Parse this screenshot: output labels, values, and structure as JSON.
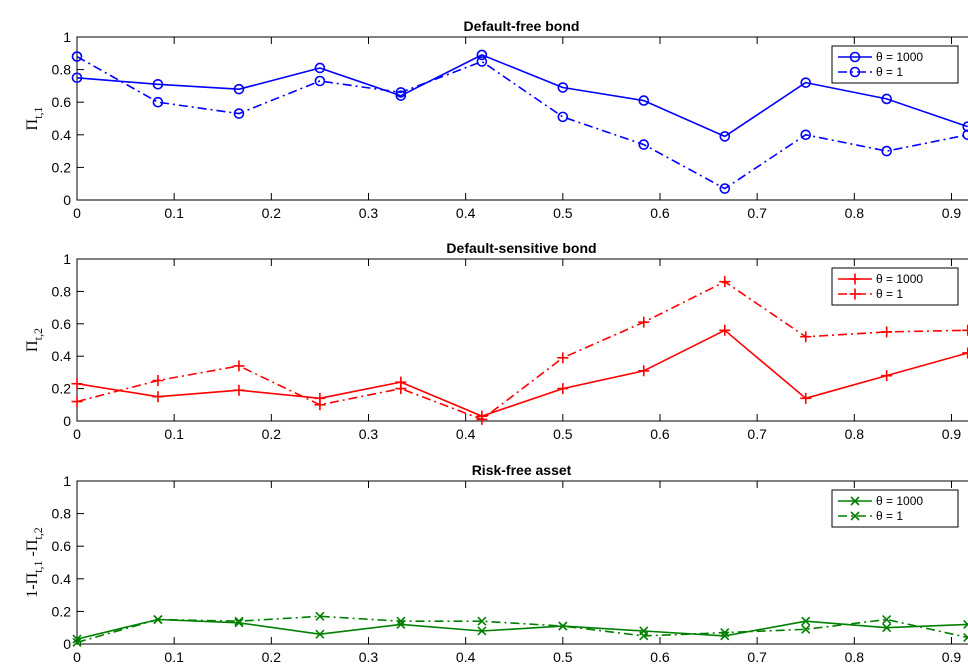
{
  "chart_data": [
    {
      "type": "line",
      "title": "Default-free bond",
      "ylabel": "Π",
      "ylabel_sub": "t,1",
      "xlim": [
        0,
        0.917
      ],
      "ylim": [
        0,
        1
      ],
      "xticks": [
        "0",
        "0.1",
        "0.2",
        "0.3",
        "0.4",
        "0.5",
        "0.6",
        "0.7",
        "0.8",
        "0.9"
      ],
      "yticks": [
        "0",
        "0.2",
        "0.4",
        "0.6",
        "0.8",
        "1"
      ],
      "color": "#0000ff",
      "marker": "o",
      "legend_position": "top-right",
      "x": [
        0,
        0.0833,
        0.1667,
        0.25,
        0.3333,
        0.4167,
        0.5,
        0.5833,
        0.6667,
        0.75,
        0.8333,
        0.9167
      ],
      "series": [
        {
          "name": "θ = 1000",
          "style": "solid",
          "values": [
            0.75,
            0.71,
            0.68,
            0.81,
            0.64,
            0.89,
            0.69,
            0.61,
            0.39,
            0.72,
            0.62,
            0.45
          ]
        },
        {
          "name": "θ = 1",
          "style": "dashdot",
          "values": [
            0.88,
            0.6,
            0.53,
            0.73,
            0.66,
            0.85,
            0.51,
            0.34,
            0.07,
            0.4,
            0.3,
            0.4
          ]
        }
      ]
    },
    {
      "type": "line",
      "title": "Default-sensitive bond",
      "ylabel": "Π",
      "ylabel_sub": "t,2",
      "xlim": [
        0,
        0.917
      ],
      "ylim": [
        0,
        1
      ],
      "xticks": [
        "0",
        "0.1",
        "0.2",
        "0.3",
        "0.4",
        "0.5",
        "0.6",
        "0.7",
        "0.8",
        "0.9"
      ],
      "yticks": [
        "0",
        "0.2",
        "0.4",
        "0.6",
        "0.8",
        "1"
      ],
      "color": "#ff0000",
      "marker": "+",
      "legend_position": "top-right",
      "x": [
        0,
        0.0833,
        0.1667,
        0.25,
        0.3333,
        0.4167,
        0.5,
        0.5833,
        0.6667,
        0.75,
        0.8333,
        0.9167
      ],
      "series": [
        {
          "name": "θ = 1000",
          "style": "solid",
          "values": [
            0.23,
            0.15,
            0.19,
            0.14,
            0.24,
            0.03,
            0.2,
            0.31,
            0.56,
            0.14,
            0.28,
            0.42
          ]
        },
        {
          "name": "θ = 1",
          "style": "dashdot",
          "values": [
            0.12,
            0.25,
            0.34,
            0.1,
            0.2,
            0.01,
            0.39,
            0.61,
            0.86,
            0.52,
            0.55,
            0.56
          ]
        }
      ]
    },
    {
      "type": "line",
      "title": "Risk-free asset",
      "ylabel": "1-Π",
      "ylabel_sub": "t,1",
      "ylabel_mid": " -Π",
      "ylabel_sub2": "t,2",
      "xlim": [
        0,
        0.917
      ],
      "ylim": [
        0,
        1
      ],
      "xticks": [
        "0",
        "0.1",
        "0.2",
        "0.3",
        "0.4",
        "0.5",
        "0.6",
        "0.7",
        "0.8",
        "0.9"
      ],
      "yticks": [
        "0",
        "0.2",
        "0.4",
        "0.6",
        "0.8",
        "1"
      ],
      "color": "#008000",
      "marker": "x",
      "legend_position": "top-right",
      "x": [
        0,
        0.0833,
        0.1667,
        0.25,
        0.3333,
        0.4167,
        0.5,
        0.5833,
        0.6667,
        0.75,
        0.8333,
        0.9167
      ],
      "series": [
        {
          "name": "θ = 1000",
          "style": "solid",
          "values": [
            0.03,
            0.15,
            0.13,
            0.06,
            0.12,
            0.08,
            0.11,
            0.08,
            0.05,
            0.14,
            0.1,
            0.12
          ]
        },
        {
          "name": "θ = 1",
          "style": "dashdot",
          "values": [
            0.01,
            0.15,
            0.14,
            0.17,
            0.14,
            0.14,
            0.11,
            0.05,
            0.07,
            0.09,
            0.15,
            0.04
          ]
        }
      ]
    }
  ]
}
